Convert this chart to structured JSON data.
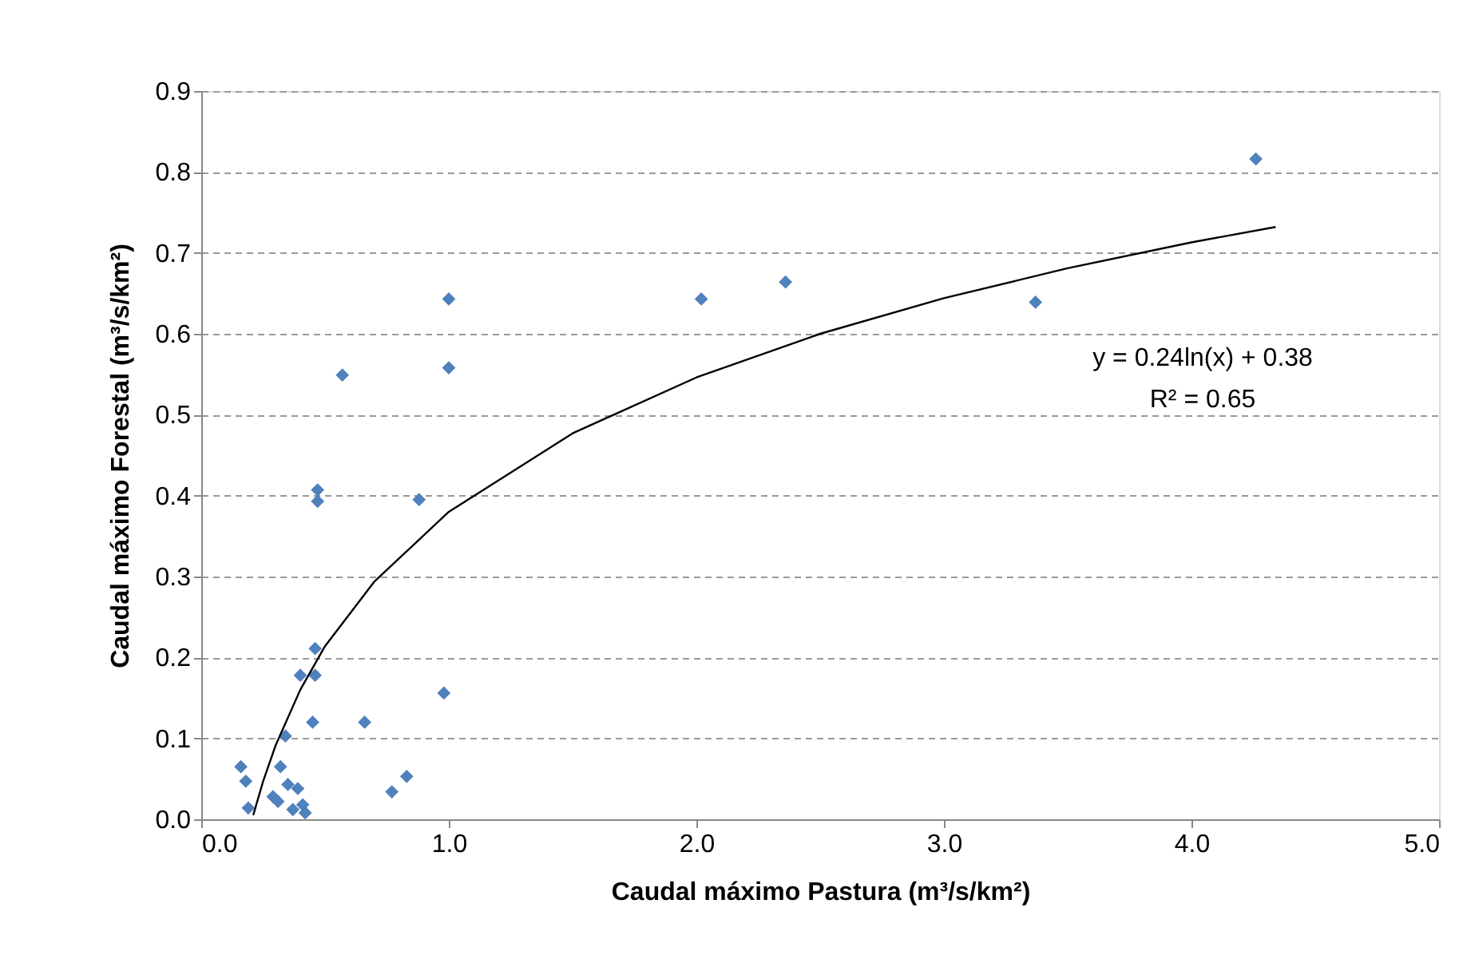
{
  "chart_data": {
    "type": "scatter",
    "xlabel": "Caudal máximo Pastura (m³/s/km²)",
    "ylabel": "Caudal máximo Forestal (m³/s/km²)",
    "xlim": [
      0,
      5
    ],
    "xticks": [
      {
        "value": 0,
        "label": "0.0"
      },
      {
        "value": 1,
        "label": "1.0"
      },
      {
        "value": 2,
        "label": "2.0"
      },
      {
        "value": 3,
        "label": "3.0"
      },
      {
        "value": 4,
        "label": "4.0"
      },
      {
        "value": 5,
        "label": "5.0"
      }
    ],
    "ylim": [
      0,
      0.9
    ],
    "yticks": [
      {
        "value": 0,
        "label": "0.0"
      },
      0.1,
      0.2,
      0.3,
      0.4,
      0.5,
      0.6,
      0.7,
      0.8,
      0.9
    ],
    "grid": "y",
    "series": [
      {
        "type": "scatter",
        "marker": "diamond",
        "color": "#4f81bd",
        "x": [
          0.47,
          0.47,
          0.88,
          0.46,
          0.4,
          0.46,
          0.98,
          0.45,
          0.66,
          0.34,
          0.16,
          0.32,
          0.18,
          0.35,
          0.39,
          0.83,
          0.77,
          0.29,
          0.31,
          0.19,
          0.37,
          0.41,
          0.42,
          0.57,
          1.0,
          1.0,
          2.02,
          2.36,
          3.37,
          4.26
        ],
        "values": [
          0.407,
          0.393,
          0.395,
          0.211,
          0.178,
          0.178,
          0.156,
          0.12,
          0.12,
          0.103,
          0.065,
          0.065,
          0.047,
          0.043,
          0.038,
          0.053,
          0.034,
          0.028,
          0.022,
          0.014,
          0.012,
          0.018,
          0.008,
          0.549,
          0.643,
          0.558,
          0.643,
          0.664,
          0.639,
          0.816
        ]
      },
      {
        "type": "line",
        "marker": "none",
        "line_style": "solid",
        "color": "#000000",
        "x": [
          0.21,
          0.25,
          0.3,
          0.4,
          0.5,
          0.7,
          1,
          1.5,
          2,
          2.5,
          3,
          3.5,
          4,
          4.34
        ],
        "values": [
          0.005,
          0.047,
          0.091,
          0.16,
          0.214,
          0.294,
          0.38,
          0.477,
          0.546,
          0.6,
          0.644,
          0.681,
          0.713,
          0.732
        ]
      }
    ],
    "annotations": [
      "y = 0.24ln(x) + 0.38",
      "R² = 0.65"
    ]
  }
}
